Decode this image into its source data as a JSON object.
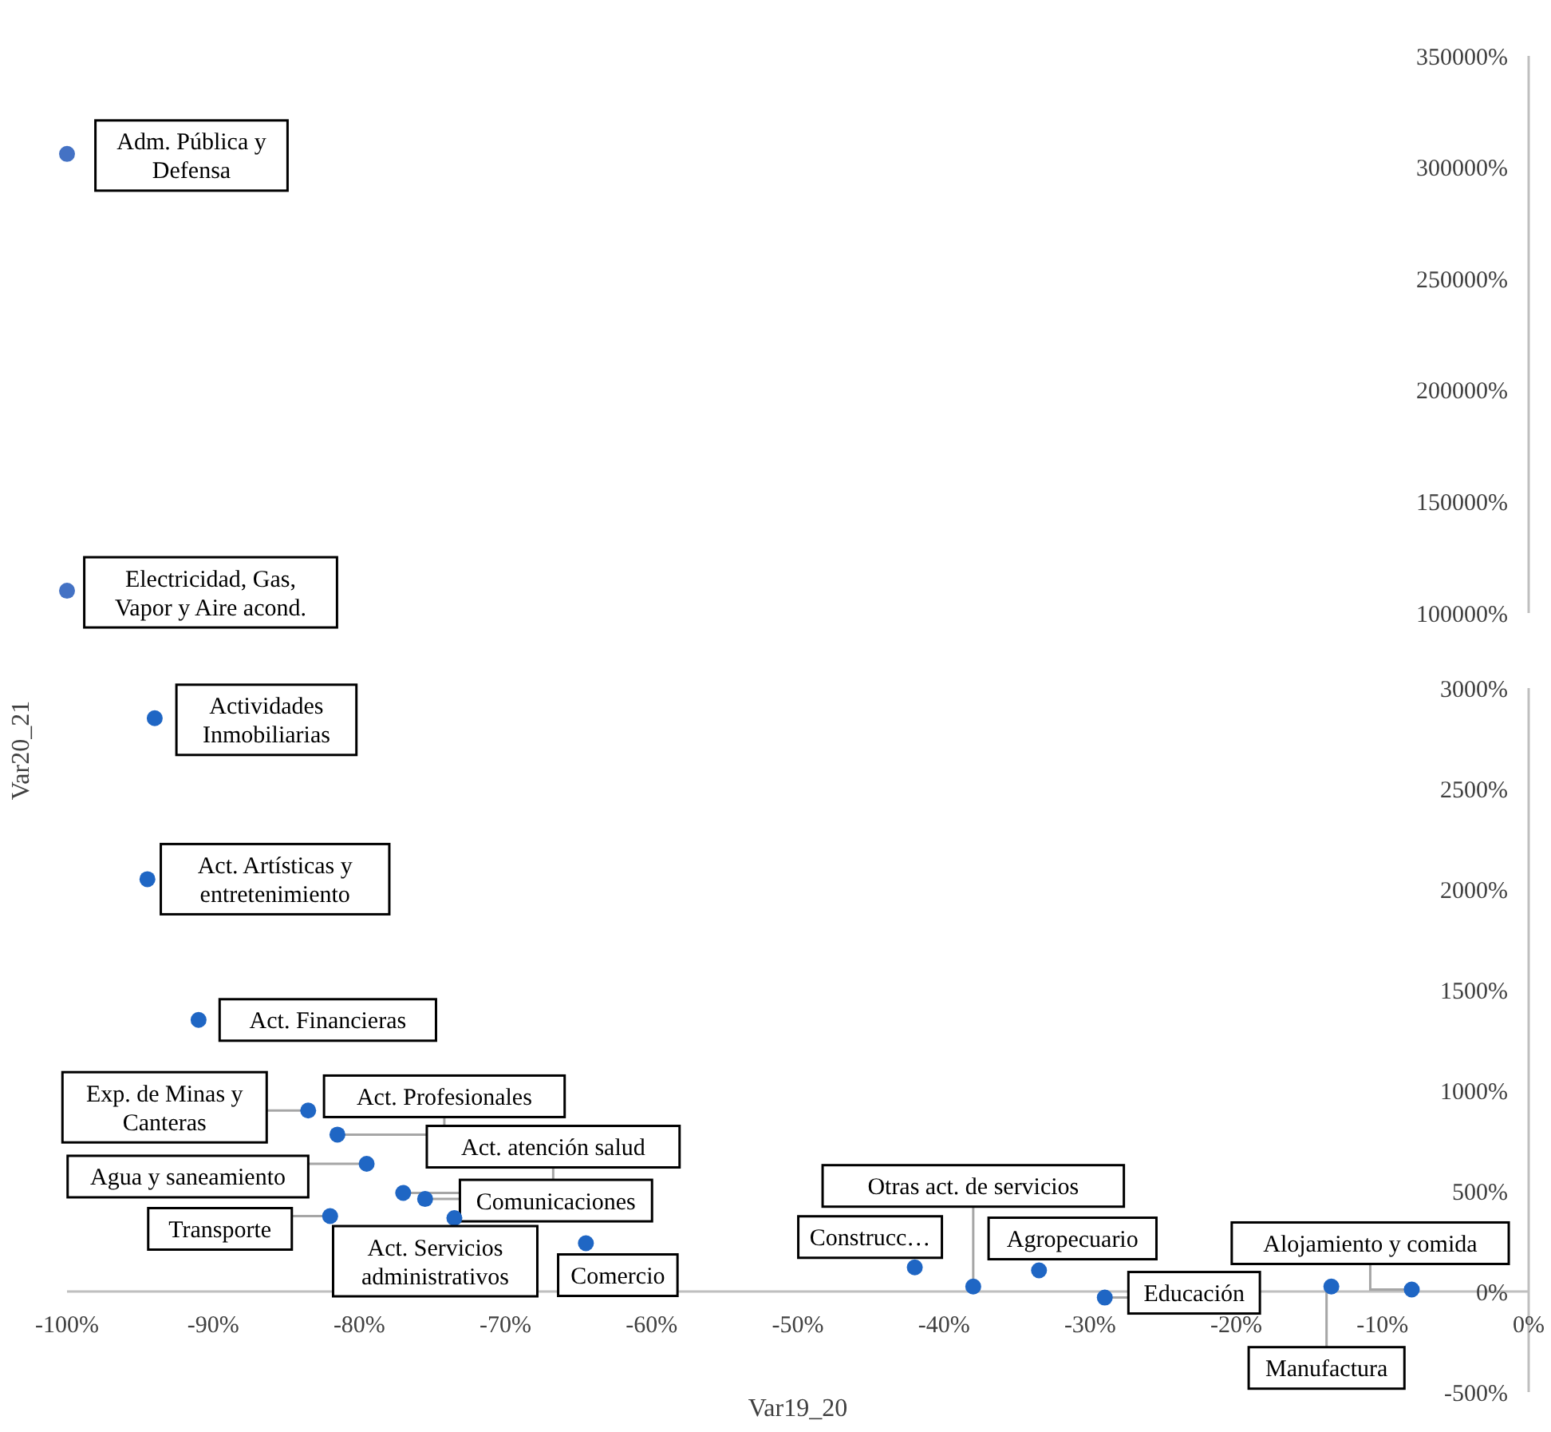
{
  "chart_data": [
    {
      "type": "scatter",
      "xlim": [
        -100,
        0
      ],
      "ylim": [
        100000,
        350000
      ],
      "tick_labels": "y",
      "marker": "circle",
      "yticks": [
        {
          "value": 100000,
          "label": "100000%"
        },
        {
          "value": 150000,
          "label": "150000%"
        },
        {
          "value": 200000,
          "label": "200000%"
        },
        {
          "value": 250000,
          "label": "250000%"
        },
        {
          "value": 300000,
          "label": "300000%"
        },
        {
          "value": 350000,
          "label": "350000%"
        }
      ],
      "series": [
        {
          "name": "Adm. Pública y Defensa",
          "color": "#4472c4",
          "x": [
            -100
          ],
          "values": [
            306000
          ]
        },
        {
          "name": "Electricidad, Gas, Vapor y Aire acond.",
          "color": "#4472c4",
          "x": [
            -100
          ],
          "values": [
            110000
          ]
        }
      ]
    },
    {
      "type": "scatter",
      "xlabel": "Var19_20",
      "ylabel": "Var20_21",
      "xlim": [
        -100,
        0
      ],
      "ylim": [
        -500,
        3000
      ],
      "marker": "circle",
      "xticks": [
        {
          "value": -100,
          "label": "-100%"
        },
        {
          "value": -90,
          "label": "-90%"
        },
        {
          "value": -80,
          "label": "-80%"
        },
        {
          "value": -70,
          "label": "-70%"
        },
        {
          "value": -60,
          "label": "-60%"
        },
        {
          "value": -50,
          "label": "-50%"
        },
        {
          "value": -40,
          "label": "-40%"
        },
        {
          "value": -30,
          "label": "-30%"
        },
        {
          "value": -20,
          "label": "-20%"
        },
        {
          "value": -10,
          "label": "-10%"
        },
        {
          "value": 0,
          "label": "0%"
        }
      ],
      "yticks": [
        {
          "value": -500,
          "label": "-500%"
        },
        {
          "value": 0,
          "label": "0%"
        },
        {
          "value": 500,
          "label": "500%"
        },
        {
          "value": 1000,
          "label": "1000%"
        },
        {
          "value": 1500,
          "label": "1500%"
        },
        {
          "value": 2000,
          "label": "2000%"
        },
        {
          "value": 2500,
          "label": "2500%"
        },
        {
          "value": 3000,
          "label": "3000%"
        }
      ],
      "series": [
        {
          "name": "Actividades Inmobiliarias",
          "color": "#1f66c4",
          "x": [
            -94
          ],
          "values": [
            2850
          ]
        },
        {
          "name": "Act. Artísticas y entretenimiento",
          "color": "#1f66c4",
          "x": [
            -94.5
          ],
          "values": [
            2050
          ]
        },
        {
          "name": "Act. Financieras",
          "color": "#1f66c4",
          "x": [
            -91
          ],
          "values": [
            1350
          ]
        },
        {
          "name": "Exp. de Minas y Canteras",
          "color": "#1f66c4",
          "x": [
            -83.5
          ],
          "values": [
            900
          ]
        },
        {
          "name": "Act. Profesionales",
          "color": "#1f66c4",
          "x": [
            -81.5
          ],
          "values": [
            780
          ]
        },
        {
          "name": "Agua y saneamiento",
          "color": "#1f66c4",
          "x": [
            -79.5
          ],
          "values": [
            635
          ]
        },
        {
          "name": "Act. atención salud",
          "color": "#1f66c4",
          "x": [
            -77
          ],
          "values": [
            490
          ]
        },
        {
          "name": "Comunicaciones",
          "color": "#1f66c4",
          "x": [
            -75.5
          ],
          "values": [
            460
          ]
        },
        {
          "name": "Act. Servicios administrativos",
          "color": "#1f66c4",
          "x": [
            -73.5
          ],
          "values": [
            365
          ]
        },
        {
          "name": "Transporte",
          "color": "#1f66c4",
          "x": [
            -82
          ],
          "values": [
            375
          ]
        },
        {
          "name": "Comercio",
          "color": "#1f66c4",
          "x": [
            -64.5
          ],
          "values": [
            240
          ]
        },
        {
          "name": "Construcc…",
          "color": "#1f66c4",
          "x": [
            -42
          ],
          "values": [
            120
          ]
        },
        {
          "name": "Otras act. de servicios",
          "color": "#1f66c4",
          "x": [
            -38
          ],
          "values": [
            25
          ]
        },
        {
          "name": "Agropecuario",
          "color": "#1f66c4",
          "x": [
            -33.5
          ],
          "values": [
            105
          ]
        },
        {
          "name": "Educación",
          "color": "#1f66c4",
          "x": [
            -29
          ],
          "values": [
            -30
          ]
        },
        {
          "name": "Manufactura",
          "color": "#1f66c4",
          "x": [
            -13.5
          ],
          "values": [
            25
          ]
        },
        {
          "name": "Alojamiento  y comida",
          "color": "#1f66c4",
          "x": [
            -8
          ],
          "values": [
            10
          ]
        }
      ]
    }
  ]
}
